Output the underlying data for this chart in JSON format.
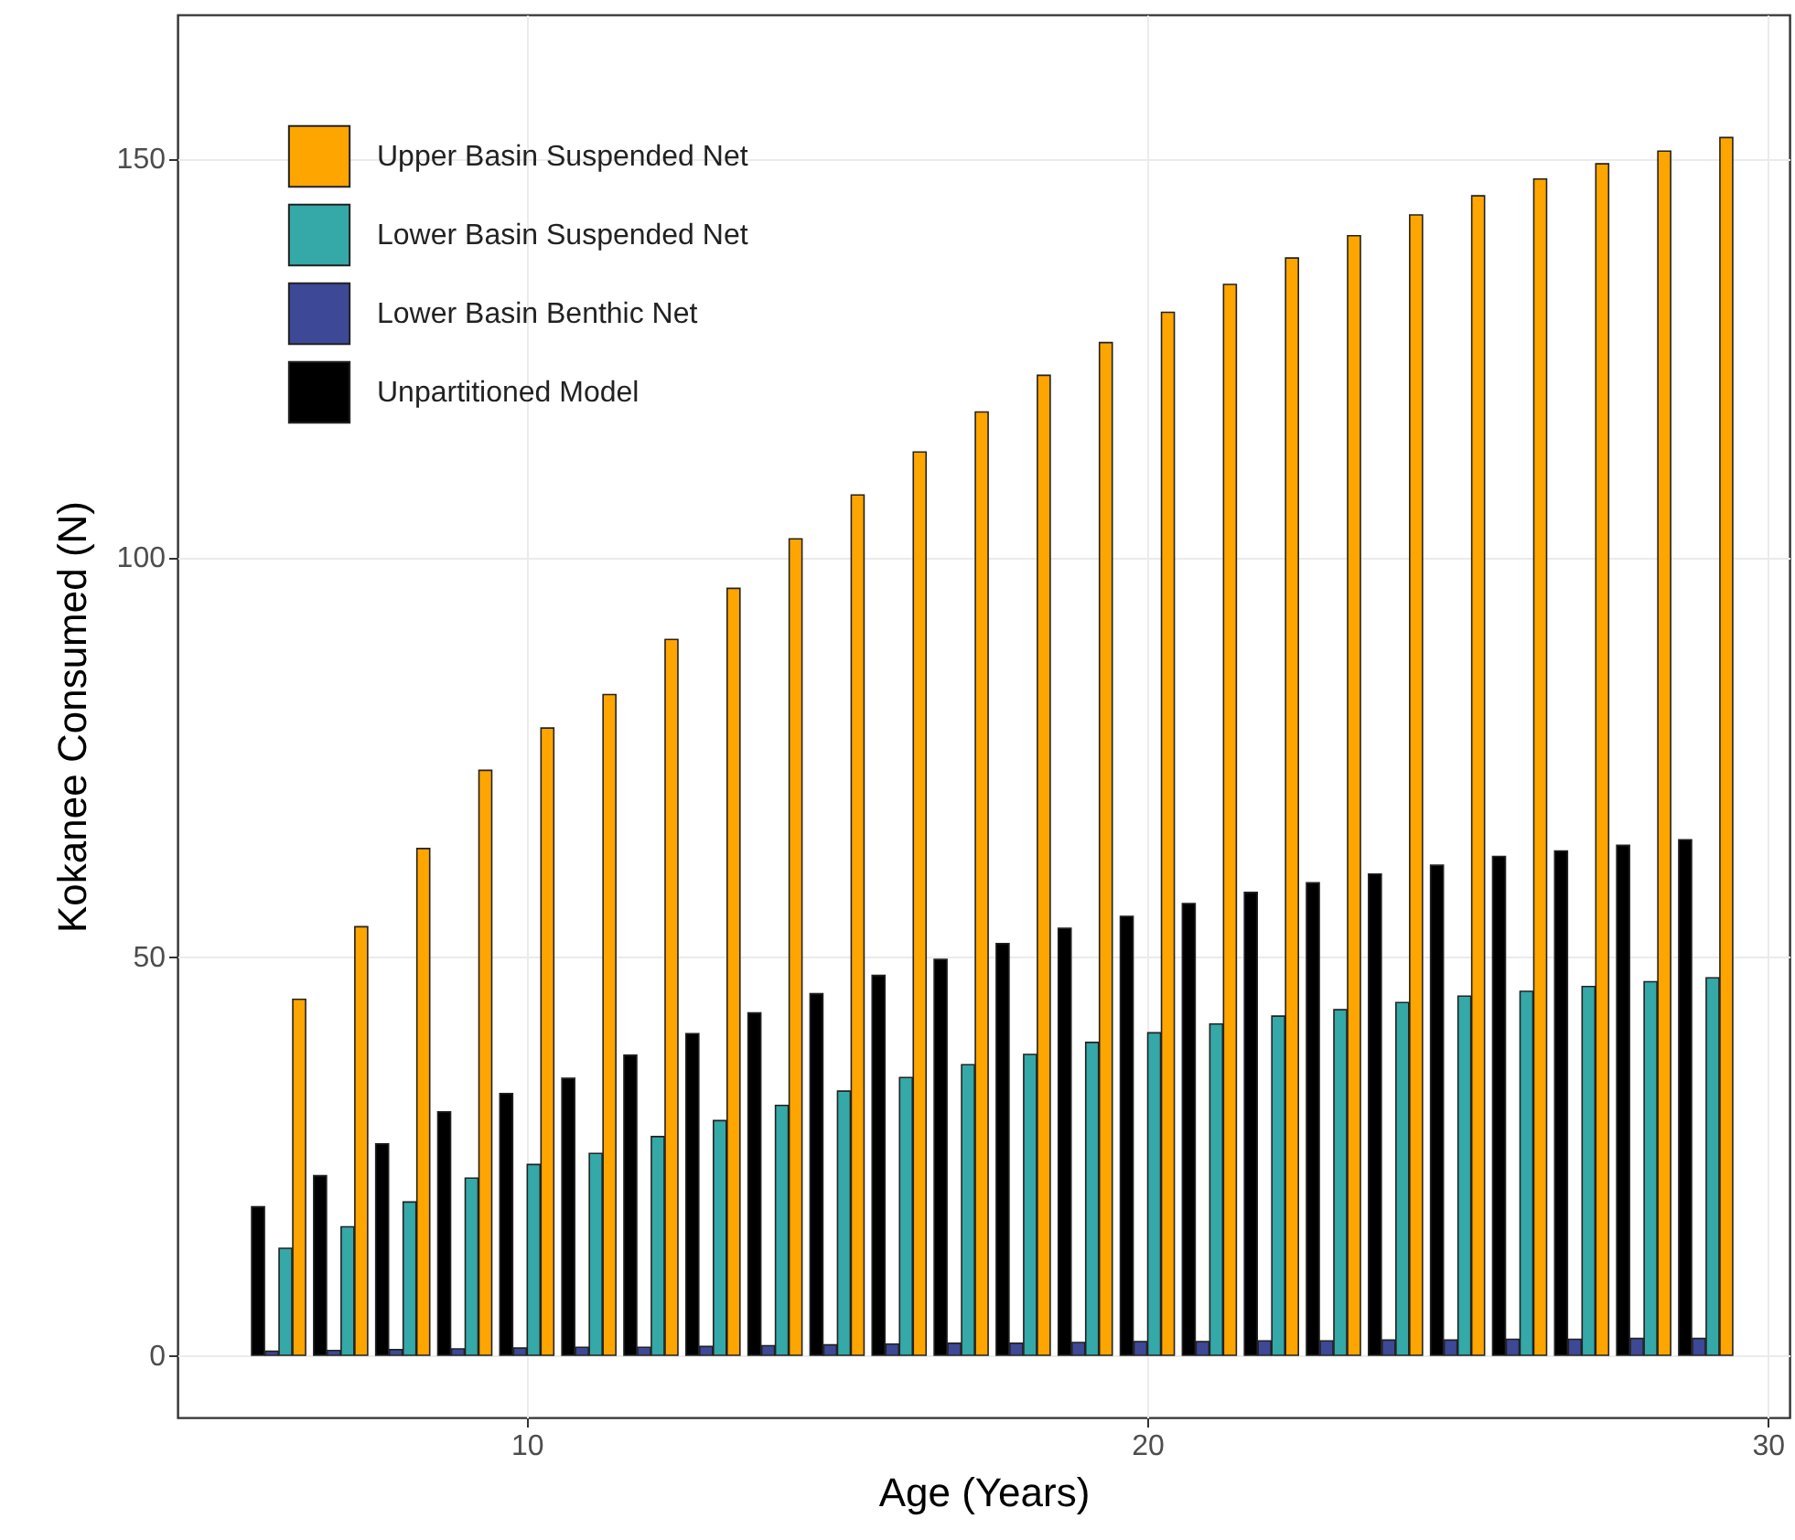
{
  "chart_data": {
    "type": "bar",
    "xlabel": "Age (Years)",
    "ylabel": "Kokanee Consumed (N)",
    "x": [
      6,
      7,
      8,
      9,
      10,
      11,
      12,
      13,
      14,
      15,
      16,
      17,
      18,
      19,
      20,
      21,
      22,
      23,
      24,
      25,
      26,
      27,
      28,
      29
    ],
    "series": [
      {
        "name": "Upper Basin Suspended Net",
        "color": "#ffa500",
        "values": [
          44.6,
          53.7,
          63.5,
          73.3,
          78.6,
          82.8,
          89.7,
          96.1,
          102.3,
          107.8,
          113.2,
          118.2,
          122.8,
          126.9,
          130.7,
          134.2,
          137.5,
          140.3,
          142.9,
          145.3,
          147.4,
          149.3,
          150.9,
          152.6
        ]
      },
      {
        "name": "Lower Basin Suspended Net",
        "color": "#35a8a8",
        "values": [
          13.4,
          16.1,
          19.2,
          22.2,
          23.9,
          25.3,
          27.4,
          29.4,
          31.3,
          33.1,
          34.8,
          36.4,
          37.7,
          39.2,
          40.4,
          41.5,
          42.5,
          43.3,
          44.2,
          45.0,
          45.6,
          46.2,
          46.8,
          47.3
        ]
      },
      {
        "name": "Lower Basin Benthic Net",
        "color": "#3d4896",
        "values": [
          0.5,
          0.6,
          0.7,
          0.8,
          0.9,
          1.0,
          1.0,
          1.1,
          1.2,
          1.3,
          1.4,
          1.5,
          1.5,
          1.6,
          1.7,
          1.7,
          1.8,
          1.8,
          1.9,
          1.9,
          2.0,
          2.0,
          2.1,
          2.1
        ]
      },
      {
        "name": "Unpartitioned Model",
        "color": "#000000",
        "values": [
          18.6,
          22.5,
          26.5,
          30.5,
          32.8,
          34.7,
          37.6,
          40.3,
          42.9,
          45.3,
          47.6,
          49.6,
          51.6,
          53.5,
          55.0,
          56.6,
          58.0,
          59.2,
          60.3,
          61.4,
          62.5,
          63.2,
          63.9,
          64.6
        ]
      }
    ],
    "xlim": [
      4.37,
      30.35
    ],
    "xticks": [
      10,
      20,
      30
    ],
    "ylim": [
      -7.8,
      168
    ],
    "yticks": [
      0,
      50,
      100,
      150
    ],
    "grid": true,
    "legend": "top left"
  }
}
